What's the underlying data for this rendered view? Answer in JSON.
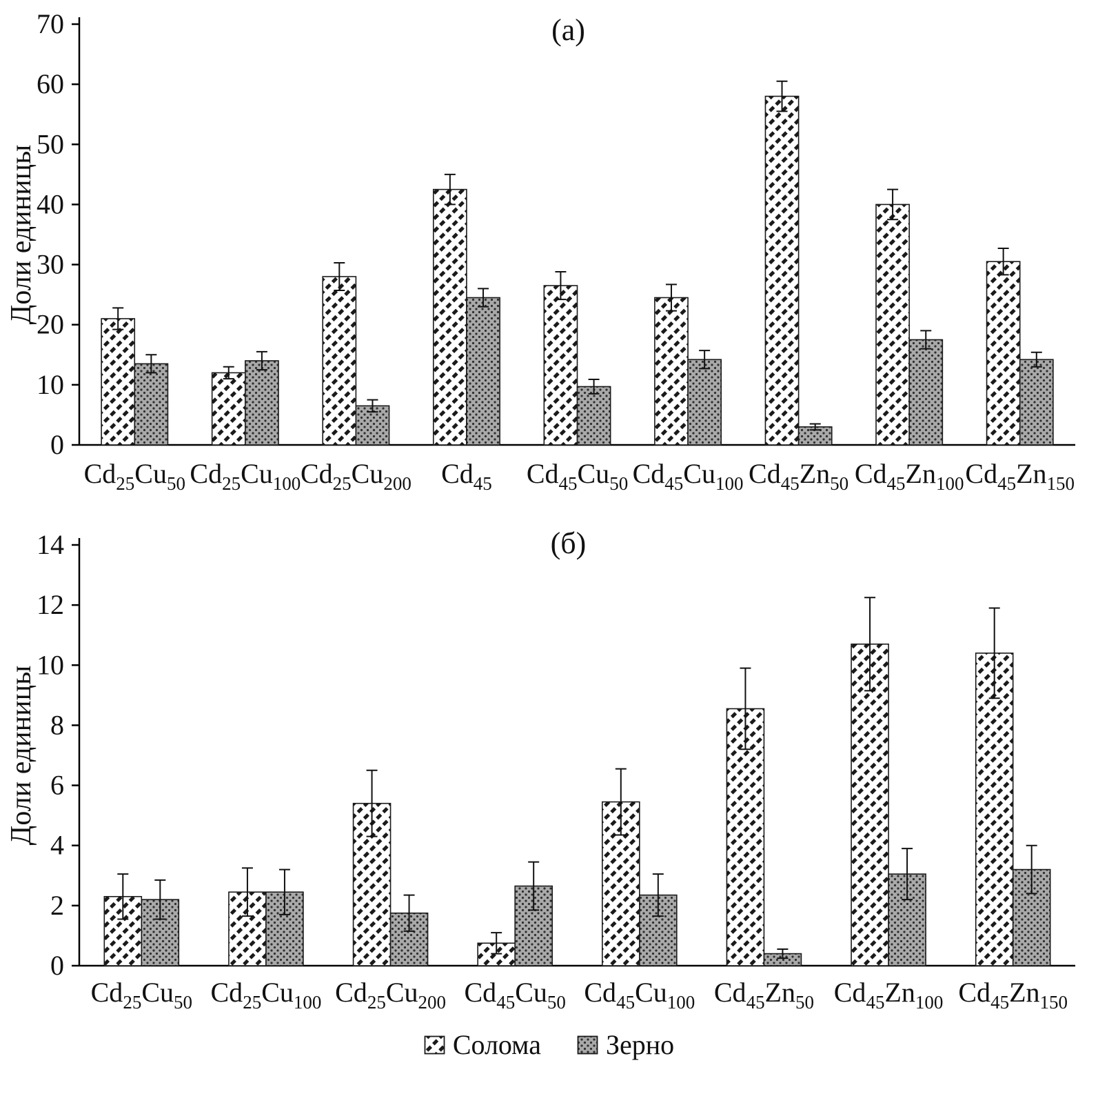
{
  "figure": {
    "ylabel": "Доли единицы",
    "legend": [
      {
        "name": "soloma",
        "label": "Солома"
      },
      {
        "name": "zerno",
        "label": "Зерно"
      }
    ],
    "colors": {
      "soloma_fill": "#ffffff",
      "soloma_hatch": "#1a1a1a",
      "zerno_fill": "#a9a9a9",
      "zerno_dot": "#2e2e2e",
      "axis": "#000000",
      "bar_outline": "#1a1a1a"
    }
  },
  "chart_data": [
    {
      "type": "bar",
      "title": "(а)",
      "ylabel": "Доли единицы",
      "ylim": [
        0,
        70
      ],
      "ytick_step": 10,
      "grid": false,
      "legend_position": "shared-bottom",
      "categories": [
        "Cd{25}Cu{50}",
        "Cd{25}Cu{100}",
        "Cd{25}Cu{200}",
        "Cd{45}",
        "Cd{45}Cu{50}",
        "Cd{45}Cu{100}",
        "Cd{45}Zn{50}",
        "Cd{45}Zn{100}",
        "Cd{45}Zn{150}"
      ],
      "series": [
        {
          "name": "Солома",
          "values": [
            21,
            12,
            28,
            42.5,
            26.5,
            24.5,
            58,
            40,
            30.5
          ],
          "errors": [
            1.8,
            1.0,
            2.3,
            2.5,
            2.3,
            2.2,
            2.5,
            2.5,
            2.2
          ]
        },
        {
          "name": "Зерно",
          "values": [
            13.5,
            14,
            6.5,
            24.5,
            9.7,
            14.2,
            3,
            17.5,
            14.2
          ],
          "errors": [
            1.5,
            1.5,
            1.0,
            1.5,
            1.2,
            1.5,
            0.5,
            1.5,
            1.2
          ]
        }
      ]
    },
    {
      "type": "bar",
      "title": "(б)",
      "ylabel": "Доли единицы",
      "ylim": [
        0,
        14
      ],
      "ytick_step": 2,
      "grid": false,
      "legend_position": "shared-bottom",
      "categories": [
        "Cd{25}Cu{50}",
        "Cd{25}Cu{100}",
        "Cd{25}Cu{200}",
        "Cd{45}Cu{50}",
        "Cd{45}Cu{100}",
        "Cd{45}Zn{50}",
        "Cd{45}Zn{100}",
        "Cd{45}Zn{150}"
      ],
      "series": [
        {
          "name": "Солома",
          "values": [
            2.3,
            2.45,
            5.4,
            0.75,
            5.45,
            8.55,
            10.7,
            10.4
          ],
          "errors": [
            0.75,
            0.8,
            1.1,
            0.35,
            1.1,
            1.35,
            1.55,
            1.5
          ]
        },
        {
          "name": "Зерно",
          "values": [
            2.2,
            2.45,
            1.75,
            2.65,
            2.35,
            0.4,
            3.05,
            3.2
          ],
          "errors": [
            0.65,
            0.75,
            0.6,
            0.8,
            0.7,
            0.15,
            0.85,
            0.8
          ]
        }
      ]
    }
  ]
}
